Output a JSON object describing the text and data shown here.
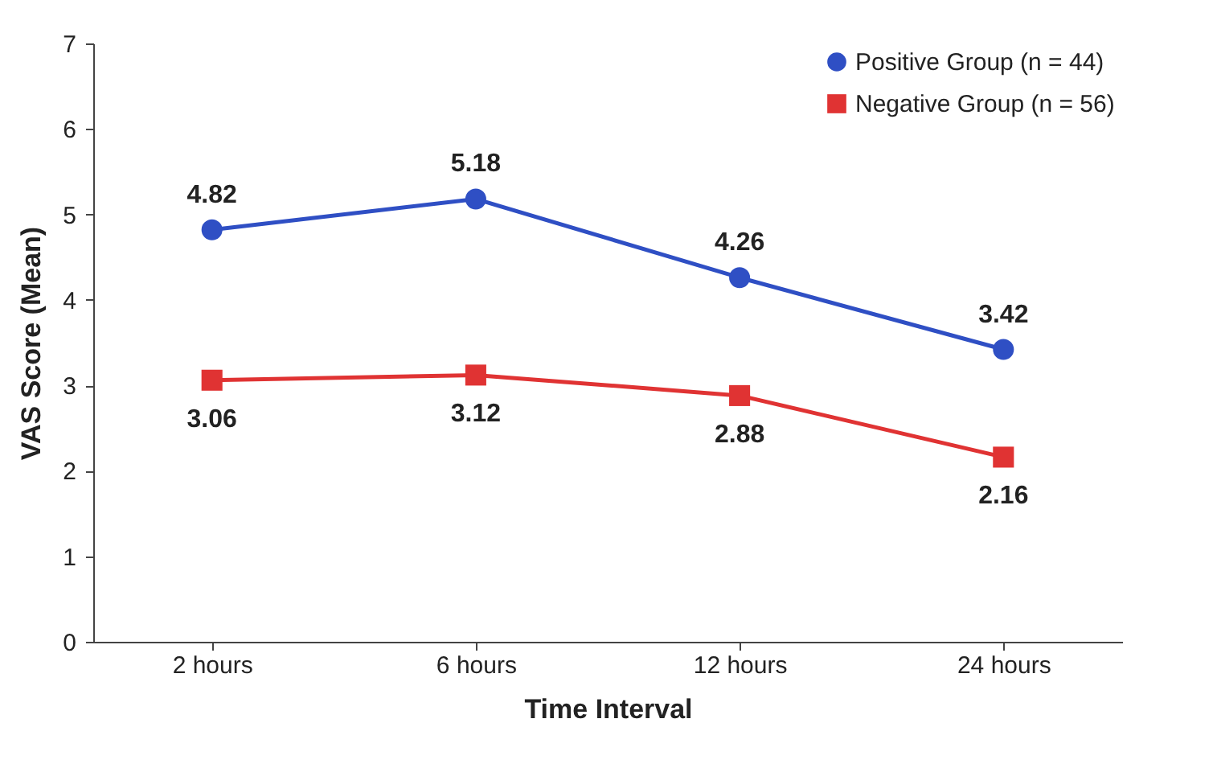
{
  "chart_data": {
    "type": "line",
    "xlabel": "Time Interval",
    "ylabel": "VAS Score (Mean)",
    "categories": [
      "2 hours",
      "6 hours",
      "12 hours",
      "24 hours"
    ],
    "series": [
      {
        "name": "Positive Group (n = 44)",
        "color": "#2f4fc4",
        "marker": "circle",
        "values": [
          4.82,
          5.18,
          4.26,
          3.42
        ]
      },
      {
        "name": "Negative Group (n = 56)",
        "color": "#e03333",
        "marker": "square",
        "values": [
          3.06,
          3.12,
          2.88,
          2.16
        ]
      }
    ],
    "ylim": [
      0,
      7
    ],
    "yticks": [
      0,
      1,
      2,
      3,
      4,
      5,
      6,
      7
    ],
    "grid": false,
    "legend": "top right",
    "data_labels": true
  }
}
